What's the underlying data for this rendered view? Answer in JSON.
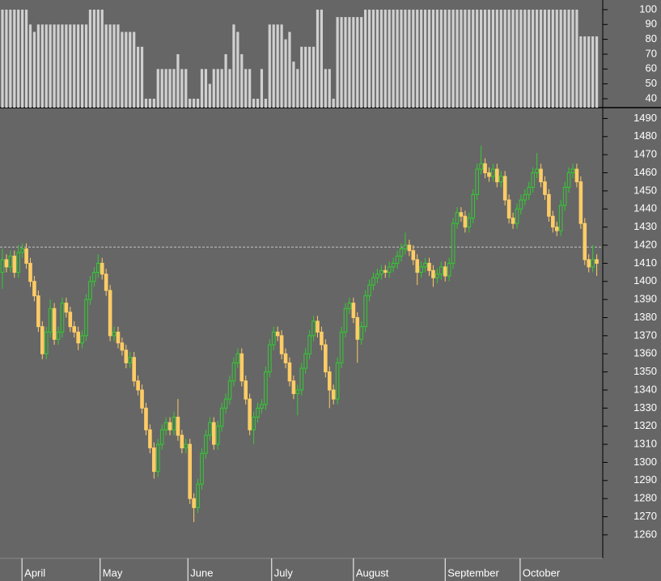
{
  "chart_data": [
    {
      "type": "bar",
      "color": "#d0d0d0",
      "ylim": [
        34,
        106.5
      ],
      "yticks": [
        40,
        50,
        60,
        70,
        80,
        90,
        100
      ],
      "values": [
        100,
        100,
        100,
        100,
        100,
        100,
        100,
        90,
        85,
        90,
        90,
        90,
        90,
        90,
        90,
        90,
        90,
        90,
        90,
        90,
        90,
        90,
        100,
        100,
        100,
        100,
        90,
        90,
        90,
        90,
        85,
        85,
        85,
        85,
        75,
        75,
        40,
        40,
        40,
        60,
        60,
        60,
        60,
        60,
        70,
        60,
        60,
        40,
        40,
        40,
        60,
        60,
        50,
        60,
        60,
        60,
        70,
        60,
        90,
        85,
        70,
        60,
        60,
        40,
        40,
        60,
        40,
        90,
        90,
        90,
        90,
        80,
        85,
        65,
        60,
        75,
        75,
        75,
        75,
        100,
        100,
        60,
        60,
        40,
        95,
        95,
        95,
        95,
        95,
        95,
        95,
        100,
        100,
        100,
        100,
        100,
        100,
        100,
        100,
        100,
        100,
        100,
        100,
        100,
        100,
        100,
        100,
        100,
        100,
        100,
        100,
        100,
        100,
        100,
        100,
        100,
        100,
        100,
        100,
        100,
        100,
        100,
        100,
        100,
        100,
        100,
        100,
        100,
        100,
        100,
        100,
        100,
        100,
        100,
        100,
        100,
        100,
        100,
        100,
        100,
        100,
        100,
        100,
        100,
        100,
        82,
        82,
        82,
        82,
        82
      ]
    },
    {
      "type": "candlestick",
      "up_color": "#33cc33",
      "down_color": "#ffcc66",
      "ylim": [
        1247,
        1496
      ],
      "yticks": [
        1260,
        1270,
        1280,
        1290,
        1300,
        1310,
        1320,
        1330,
        1340,
        1350,
        1360,
        1370,
        1380,
        1390,
        1400,
        1410,
        1420,
        1430,
        1440,
        1450,
        1460,
        1470,
        1480,
        1490
      ],
      "reference_line": 1419,
      "xticks": [
        {
          "value": 4.9,
          "label": "April"
        },
        {
          "value": 24.5,
          "label": "May"
        },
        {
          "value": 46.5,
          "label": "June"
        },
        {
          "value": 67.5,
          "label": "July"
        },
        {
          "value": 88,
          "label": "August"
        },
        {
          "value": 111,
          "label": "September"
        },
        {
          "value": 129.8,
          "label": "October"
        }
      ],
      "candles": [
        [
          1405,
          1418,
          1396,
          1412
        ],
        [
          1412,
          1415,
          1405,
          1408
        ],
        [
          1408,
          1417,
          1405,
          1414
        ],
        [
          1414,
          1417,
          1402,
          1405
        ],
        [
          1405,
          1420,
          1402,
          1416
        ],
        [
          1416,
          1421,
          1413,
          1418
        ],
        [
          1418,
          1421,
          1407,
          1410
        ],
        [
          1410,
          1413,
          1397,
          1400
        ],
        [
          1400,
          1403,
          1389,
          1392
        ],
        [
          1392,
          1395,
          1372,
          1375
        ],
        [
          1375,
          1378,
          1357,
          1360
        ],
        [
          1360,
          1375,
          1357,
          1372
        ],
        [
          1372,
          1390,
          1369,
          1385
        ],
        [
          1385,
          1388,
          1365,
          1368
        ],
        [
          1368,
          1375,
          1365,
          1372
        ],
        [
          1372,
          1391,
          1369,
          1388
        ],
        [
          1388,
          1391,
          1380,
          1383
        ],
        [
          1383,
          1386,
          1372,
          1375
        ],
        [
          1375,
          1378,
          1369,
          1372
        ],
        [
          1372,
          1375,
          1362,
          1366
        ],
        [
          1366,
          1373,
          1363,
          1370
        ],
        [
          1370,
          1393,
          1367,
          1390
        ],
        [
          1390,
          1403,
          1387,
          1400
        ],
        [
          1400,
          1408,
          1397,
          1405
        ],
        [
          1405,
          1415,
          1402,
          1410
        ],
        [
          1410,
          1413,
          1401,
          1404
        ],
        [
          1404,
          1407,
          1392,
          1395
        ],
        [
          1395,
          1398,
          1367,
          1370
        ],
        [
          1370,
          1375,
          1367,
          1372
        ],
        [
          1372,
          1375,
          1363,
          1366
        ],
        [
          1366,
          1369,
          1359,
          1362
        ],
        [
          1362,
          1365,
          1352,
          1355
        ],
        [
          1355,
          1361,
          1352,
          1358
        ],
        [
          1358,
          1361,
          1342,
          1345
        ],
        [
          1345,
          1348,
          1337,
          1340
        ],
        [
          1340,
          1343,
          1327,
          1330
        ],
        [
          1330,
          1333,
          1315,
          1318
        ],
        [
          1318,
          1321,
          1305,
          1308
        ],
        [
          1308,
          1311,
          1291,
          1295
        ],
        [
          1295,
          1313,
          1292,
          1310
        ],
        [
          1310,
          1321,
          1307,
          1318
        ],
        [
          1318,
          1325,
          1315,
          1322
        ],
        [
          1322,
          1325,
          1315,
          1318
        ],
        [
          1318,
          1328,
          1315,
          1325
        ],
        [
          1325,
          1335,
          1312,
          1315
        ],
        [
          1315,
          1318,
          1305,
          1308
        ],
        [
          1308,
          1313,
          1305,
          1310
        ],
        [
          1310,
          1313,
          1277,
          1280
        ],
        [
          1280,
          1283,
          1267,
          1275
        ],
        [
          1275,
          1291,
          1272,
          1288
        ],
        [
          1288,
          1308,
          1285,
          1305
        ],
        [
          1305,
          1318,
          1302,
          1315
        ],
        [
          1315,
          1325,
          1312,
          1322
        ],
        [
          1322,
          1325,
          1307,
          1310
        ],
        [
          1310,
          1323,
          1307,
          1320
        ],
        [
          1320,
          1333,
          1317,
          1330
        ],
        [
          1330,
          1338,
          1327,
          1335
        ],
        [
          1335,
          1348,
          1332,
          1345
        ],
        [
          1345,
          1358,
          1342,
          1355
        ],
        [
          1355,
          1363,
          1352,
          1360
        ],
        [
          1360,
          1363,
          1342,
          1345
        ],
        [
          1345,
          1348,
          1332,
          1335
        ],
        [
          1335,
          1338,
          1315,
          1318
        ],
        [
          1318,
          1328,
          1310,
          1325
        ],
        [
          1325,
          1333,
          1322,
          1330
        ],
        [
          1330,
          1335,
          1327,
          1332
        ],
        [
          1332,
          1353,
          1329,
          1350
        ],
        [
          1350,
          1368,
          1347,
          1365
        ],
        [
          1365,
          1375,
          1362,
          1372
        ],
        [
          1372,
          1375,
          1367,
          1370
        ],
        [
          1370,
          1373,
          1357,
          1360
        ],
        [
          1360,
          1363,
          1352,
          1355
        ],
        [
          1355,
          1358,
          1342,
          1345
        ],
        [
          1345,
          1348,
          1335,
          1338
        ],
        [
          1338,
          1343,
          1326,
          1340
        ],
        [
          1340,
          1355,
          1337,
          1352
        ],
        [
          1352,
          1363,
          1349,
          1360
        ],
        [
          1360,
          1373,
          1357,
          1370
        ],
        [
          1370,
          1381,
          1367,
          1378
        ],
        [
          1378,
          1381,
          1369,
          1372
        ],
        [
          1372,
          1375,
          1362,
          1365
        ],
        [
          1365,
          1368,
          1347,
          1350
        ],
        [
          1350,
          1353,
          1330,
          1340
        ],
        [
          1340,
          1343,
          1332,
          1335
        ],
        [
          1335,
          1358,
          1332,
          1355
        ],
        [
          1355,
          1375,
          1352,
          1372
        ],
        [
          1372,
          1388,
          1369,
          1385
        ],
        [
          1385,
          1391,
          1382,
          1388
        ],
        [
          1388,
          1391,
          1377,
          1380
        ],
        [
          1380,
          1383,
          1355,
          1368
        ],
        [
          1368,
          1378,
          1365,
          1375
        ],
        [
          1375,
          1395,
          1372,
          1392
        ],
        [
          1392,
          1401,
          1389,
          1398
        ],
        [
          1398,
          1405,
          1395,
          1402
        ],
        [
          1402,
          1407,
          1399,
          1404
        ],
        [
          1404,
          1409,
          1401,
          1406
        ],
        [
          1406,
          1409,
          1402,
          1405
        ],
        [
          1405,
          1411,
          1402,
          1408
        ],
        [
          1408,
          1413,
          1405,
          1410
        ],
        [
          1410,
          1417,
          1407,
          1414
        ],
        [
          1414,
          1421,
          1411,
          1418
        ],
        [
          1418,
          1427,
          1415,
          1420
        ],
        [
          1420,
          1423,
          1414,
          1417
        ],
        [
          1417,
          1420,
          1409,
          1412
        ],
        [
          1412,
          1415,
          1398,
          1405
        ],
        [
          1405,
          1411,
          1402,
          1408
        ],
        [
          1408,
          1413,
          1405,
          1410
        ],
        [
          1410,
          1413,
          1403,
          1406
        ],
        [
          1406,
          1409,
          1397,
          1402
        ],
        [
          1402,
          1407,
          1399,
          1404
        ],
        [
          1404,
          1411,
          1401,
          1408
        ],
        [
          1408,
          1411,
          1400,
          1403
        ],
        [
          1403,
          1413,
          1400,
          1410
        ],
        [
          1410,
          1435,
          1407,
          1432
        ],
        [
          1432,
          1441,
          1429,
          1438
        ],
        [
          1438,
          1441,
          1433,
          1436
        ],
        [
          1436,
          1439,
          1427,
          1430
        ],
        [
          1430,
          1438,
          1427,
          1435
        ],
        [
          1435,
          1451,
          1432,
          1448
        ],
        [
          1448,
          1465,
          1445,
          1462
        ],
        [
          1462,
          1475,
          1459,
          1465
        ],
        [
          1465,
          1468,
          1457,
          1460
        ],
        [
          1460,
          1463,
          1455,
          1458
        ],
        [
          1458,
          1465,
          1455,
          1462
        ],
        [
          1462,
          1465,
          1452,
          1455
        ],
        [
          1455,
          1461,
          1452,
          1458
        ],
        [
          1458,
          1461,
          1442,
          1445
        ],
        [
          1445,
          1448,
          1432,
          1435
        ],
        [
          1435,
          1438,
          1429,
          1432
        ],
        [
          1432,
          1443,
          1429,
          1440
        ],
        [
          1440,
          1448,
          1437,
          1445
        ],
        [
          1445,
          1451,
          1442,
          1448
        ],
        [
          1448,
          1455,
          1445,
          1452
        ],
        [
          1452,
          1463,
          1449,
          1460
        ],
        [
          1460,
          1471,
          1457,
          1462
        ],
        [
          1462,
          1465,
          1452,
          1455
        ],
        [
          1455,
          1458,
          1445,
          1448
        ],
        [
          1448,
          1451,
          1433,
          1436
        ],
        [
          1436,
          1439,
          1427,
          1430
        ],
        [
          1430,
          1433,
          1425,
          1428
        ],
        [
          1428,
          1445,
          1425,
          1442
        ],
        [
          1442,
          1455,
          1439,
          1452
        ],
        [
          1452,
          1463,
          1449,
          1460
        ],
        [
          1460,
          1465,
          1457,
          1462
        ],
        [
          1462,
          1465,
          1452,
          1455
        ],
        [
          1455,
          1458,
          1429,
          1432
        ],
        [
          1432,
          1435,
          1409,
          1412
        ],
        [
          1412,
          1415,
          1405,
          1408
        ],
        [
          1408,
          1420,
          1405,
          1412
        ],
        [
          1412,
          1415,
          1403,
          1410
        ]
      ]
    }
  ]
}
